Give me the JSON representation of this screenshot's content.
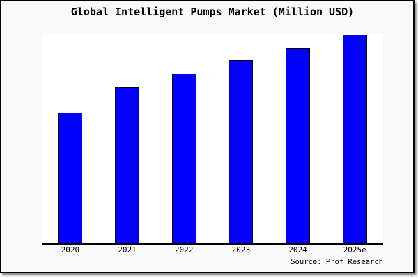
{
  "chart_data": {
    "type": "bar",
    "title": "Global Intelligent Pumps Market (Million USD)",
    "categories": [
      "2020",
      "2021",
      "2022",
      "2023",
      "2024",
      "2025e"
    ],
    "values": [
      188,
      225,
      244,
      263,
      281,
      300
    ],
    "values_note": "relative bar heights in px; no numeric y-axis shown in image",
    "ylim": [
      0,
      303
    ],
    "xlabel": "",
    "ylabel": "",
    "grid": false,
    "legend": false,
    "bar_color": "#0101FD",
    "bar_border_color": "#000000",
    "source_annotation": "Source: Prof Research"
  },
  "colors": {
    "page_background": "#FFFFFF",
    "card_background": "#F9F9F9",
    "plot_background": "#FFFFFF",
    "bar_fill": "#0101FD",
    "axis_line": "#000000",
    "text": "#000000",
    "frame_border": "#000000"
  }
}
